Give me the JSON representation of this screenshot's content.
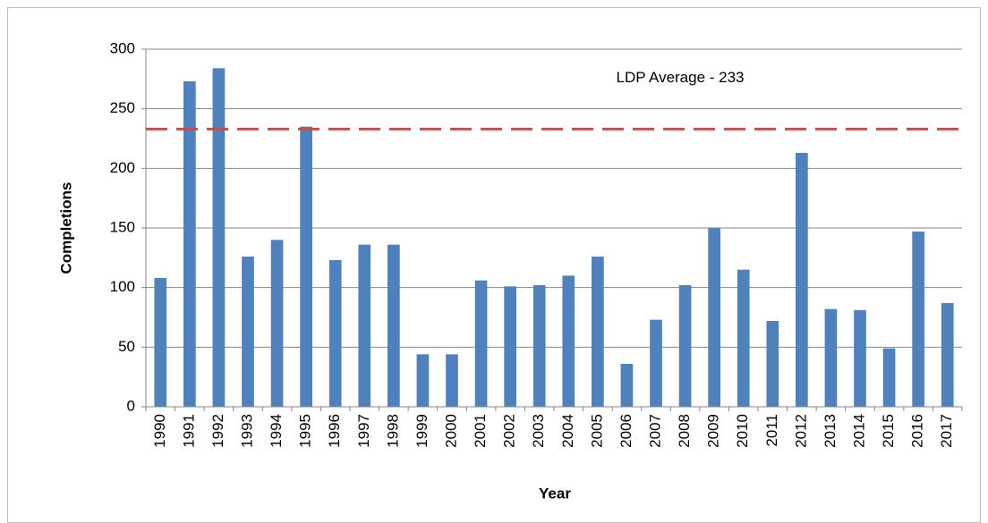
{
  "chart_data": {
    "type": "bar",
    "x_label": "Year",
    "y_label": "Completions",
    "categories": [
      "1990",
      "1991",
      "1992",
      "1993",
      "1994",
      "1995",
      "1996",
      "1997",
      "1998",
      "1999",
      "2000",
      "2001",
      "2002",
      "2003",
      "2004",
      "2005",
      "2006",
      "2007",
      "2008",
      "2009",
      "2010",
      "2011",
      "2012",
      "2013",
      "2014",
      "2015",
      "2016",
      "2017"
    ],
    "values": [
      108,
      273,
      284,
      126,
      140,
      235,
      123,
      136,
      136,
      44,
      44,
      106,
      101,
      102,
      110,
      126,
      36,
      73,
      102,
      150,
      115,
      72,
      213,
      82,
      81,
      49,
      147,
      87
    ],
    "color": "#4f81bd",
    "ylim": [
      0,
      300
    ],
    "yticks": [
      0,
      50,
      100,
      150,
      200,
      250,
      300
    ],
    "grid": true,
    "reference_line": {
      "value": 233,
      "label": "LDP Average - 233",
      "color": "#c0504d"
    }
  }
}
